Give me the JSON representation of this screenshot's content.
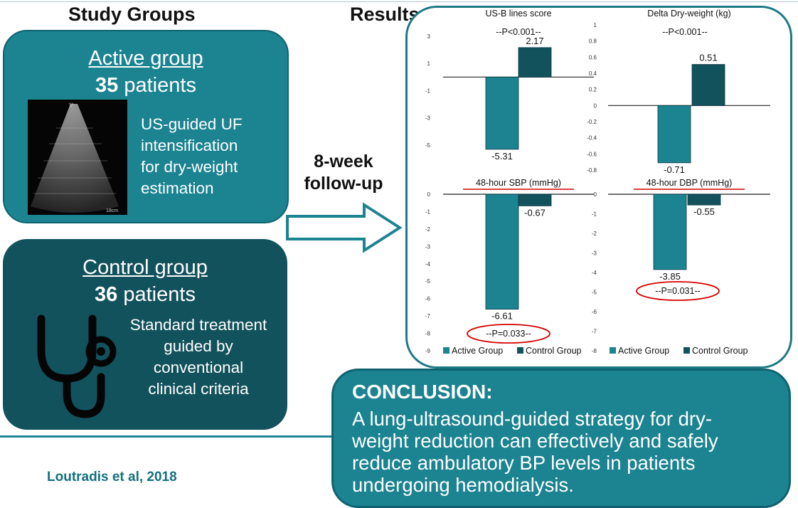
{
  "headings": {
    "study_groups": "Study Groups",
    "results": "Results"
  },
  "active_group": {
    "name": "Active group",
    "count": "35",
    "count_suffix": " patients",
    "description": [
      "US-guided UF",
      "intensification",
      "for dry-weight",
      "estimation"
    ],
    "image_scale_label": "18cm"
  },
  "control_group": {
    "name": "Control group",
    "count": "36",
    "count_suffix": " patients",
    "description": [
      "Standard treatment",
      "guided by",
      "conventional",
      "clinical criteria"
    ]
  },
  "followup": {
    "line1": "8-week",
    "line2": "follow-up"
  },
  "colors": {
    "active": "#1c8391",
    "control": "#12525c",
    "highlight": "#d40000"
  },
  "chart_data": [
    {
      "type": "bar",
      "title": "US-B lines score",
      "categories": [
        "Active Group",
        "Control Group"
      ],
      "values": [
        -5.31,
        2.17
      ],
      "value_labels": [
        "-5.31",
        "2.17"
      ],
      "ylim": [
        -6,
        3
      ],
      "ticks": [
        3,
        1,
        -1,
        -3,
        -5
      ],
      "annotation": "--P<0.001--",
      "annotation_circled": false,
      "title_underlined": false
    },
    {
      "type": "bar",
      "title": "Delta Dry-weight (kg)",
      "categories": [
        "Active Group",
        "Control Group"
      ],
      "values": [
        -0.71,
        0.51
      ],
      "value_labels": [
        "-0.71",
        "0.51"
      ],
      "ylim": [
        -0.8,
        1
      ],
      "ticks": [
        1,
        0.8,
        0.6,
        0.4,
        0.2,
        0,
        -0.2,
        -0.4,
        -0.6,
        -0.8
      ],
      "annotation": "--P<0.001--",
      "annotation_circled": false,
      "title_underlined": false
    },
    {
      "type": "bar",
      "title": "48-hour SBP (mmHg)",
      "categories": [
        "Active Group",
        "Control Group"
      ],
      "values": [
        -6.61,
        -0.67
      ],
      "value_labels": [
        "-6.61",
        "-0.67"
      ],
      "ylim": [
        -9,
        0
      ],
      "ticks": [
        0,
        -1,
        -2,
        -3,
        -4,
        -5,
        -6,
        -7,
        -8,
        -9
      ],
      "annotation": "--P=0.033--",
      "annotation_circled": true,
      "title_underlined": true,
      "legend": [
        "Active Group",
        "Control Group"
      ]
    },
    {
      "type": "bar",
      "title": "48-hour DBP (mmHg)",
      "categories": [
        "Active Group",
        "Control Group"
      ],
      "values": [
        -3.85,
        -0.55
      ],
      "value_labels": [
        "-3.85",
        "-0.55"
      ],
      "ylim": [
        -8,
        0
      ],
      "ticks": [
        0,
        -1,
        -2,
        -3,
        -4,
        -5,
        -6,
        -7,
        -8
      ],
      "annotation": "--P=0.031--",
      "annotation_circled": true,
      "title_underlined": true,
      "legend": [
        "Active Group",
        "Control Group"
      ]
    }
  ],
  "conclusion": {
    "title": "CONCLUSION:",
    "lines": [
      "A lung-ultrasound-guided strategy for dry-",
      "weight reduction can effectively and safely",
      "reduce ambulatory BP levels in patients",
      "undergoing hemodialysis."
    ]
  },
  "citation": "Loutradis et al, 2018"
}
